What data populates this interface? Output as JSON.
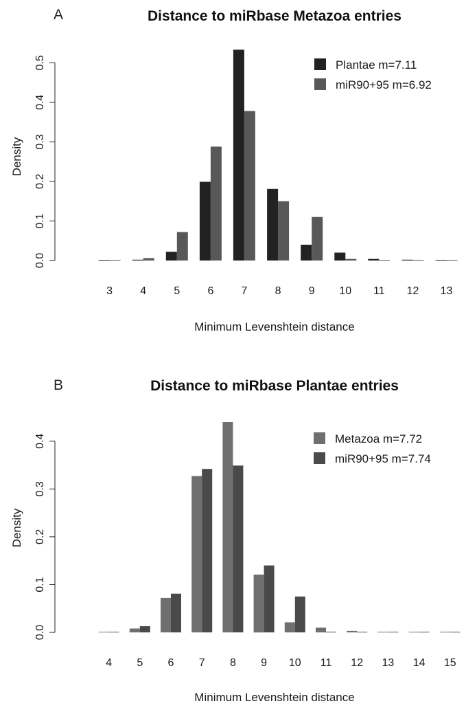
{
  "colors": {
    "plantae": "#222222",
    "metazoa": "#6f6f6f",
    "mir90_95_a": "#585858",
    "mir90_95_b": "#4a4a4a"
  },
  "chart_data": [
    {
      "panel_letter": "A",
      "type": "bar",
      "title": "Distance to miRbase Metazoa entries",
      "xlabel": "Minimum Levenshtein distance",
      "ylabel": "Density",
      "categories": [
        "3",
        "4",
        "5",
        "6",
        "7",
        "8",
        "9",
        "10",
        "11",
        "12",
        "13"
      ],
      "ylim": [
        0,
        0.53
      ],
      "yticks": [
        "0.0",
        "0.1",
        "0.2",
        "0.3",
        "0.4",
        "0.5"
      ],
      "yticks_values": [
        0,
        0.1,
        0.2,
        0.3,
        0.4,
        0.5
      ],
      "legend_position": "top-right",
      "grid": false,
      "series": [
        {
          "name": "Plantae m=7.11",
          "color_key": "plantae",
          "values": [
            0.001,
            0.002,
            0.022,
            0.199,
            0.533,
            0.181,
            0.04,
            0.02,
            0.004,
            0.002,
            0.001
          ]
        },
        {
          "name": "miR90+95 m=6.92",
          "color_key": "mir90_95_a",
          "values": [
            0.001,
            0.006,
            0.072,
            0.288,
            0.378,
            0.15,
            0.11,
            0.004,
            0.0,
            0.0,
            0.0
          ]
        }
      ]
    },
    {
      "panel_letter": "B",
      "type": "bar",
      "title": "Distance to miRbase Plantae entries",
      "xlabel": "Minimum Levenshtein distance",
      "ylabel": "Density",
      "categories": [
        "4",
        "5",
        "6",
        "7",
        "8",
        "9",
        "10",
        "11",
        "12",
        "13",
        "14",
        "15"
      ],
      "ylim": [
        0,
        0.44
      ],
      "yticks": [
        "0.0",
        "0.1",
        "0.2",
        "0.3",
        "0.4"
      ],
      "yticks_values": [
        0,
        0.1,
        0.2,
        0.3,
        0.4
      ],
      "legend_position": "top-right",
      "grid": false,
      "series": [
        {
          "name": "Metazoa m=7.72",
          "color_key": "metazoa",
          "values": [
            0.001,
            0.008,
            0.072,
            0.327,
            0.44,
            0.121,
            0.021,
            0.01,
            0.003,
            0.001,
            0.001,
            0.001
          ]
        },
        {
          "name": "miR90+95 m=7.74",
          "color_key": "mir90_95_b",
          "values": [
            0.001,
            0.013,
            0.081,
            0.342,
            0.349,
            0.14,
            0.075,
            0.001,
            0.0,
            0.0,
            0.0,
            0.0
          ]
        }
      ]
    }
  ]
}
